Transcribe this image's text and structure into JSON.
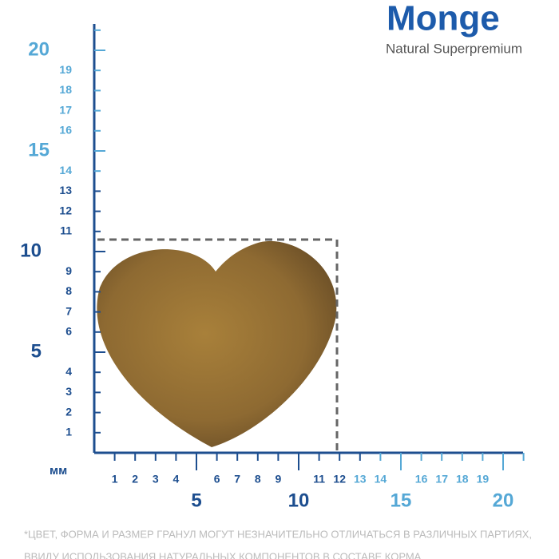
{
  "logo": {
    "brand": "Monge",
    "tagline": "Natural Superpremium"
  },
  "unit": "мм",
  "colors": {
    "dark": "#1d4e8f",
    "light": "#55a8d6"
  },
  "y_ruler": {
    "minor_dark": [
      1,
      2,
      3,
      4,
      6,
      7,
      8,
      9,
      11,
      12,
      13
    ],
    "minor_light": [
      14,
      16,
      17,
      18,
      19
    ],
    "major_dark": [
      5,
      10
    ],
    "major_light": [
      15,
      20
    ]
  },
  "x_ruler": {
    "minor_dark": [
      1,
      2,
      3,
      4,
      6,
      7,
      8,
      9,
      11,
      12
    ],
    "minor_light": [
      13,
      14,
      16,
      17,
      18,
      19
    ],
    "major_dark": [
      5,
      10
    ],
    "major_light": [
      15,
      20
    ]
  },
  "footnote": [
    "*ЦВЕТ, ФОРМА И РАЗМЕР ГРАНУЛ МОГУТ НЕЗНАЧИТЕЛЬНО ОТЛИЧАТЬСЯ В РАЗЛИЧНЫХ ПАРТИЯХ,",
    "ВВИДУ ИСПОЛЬЗОВАНИЯ НАТУРАЛЬНЫХ КОМПОНЕНТОВ В СОСТАВЕ КОРМА"
  ]
}
